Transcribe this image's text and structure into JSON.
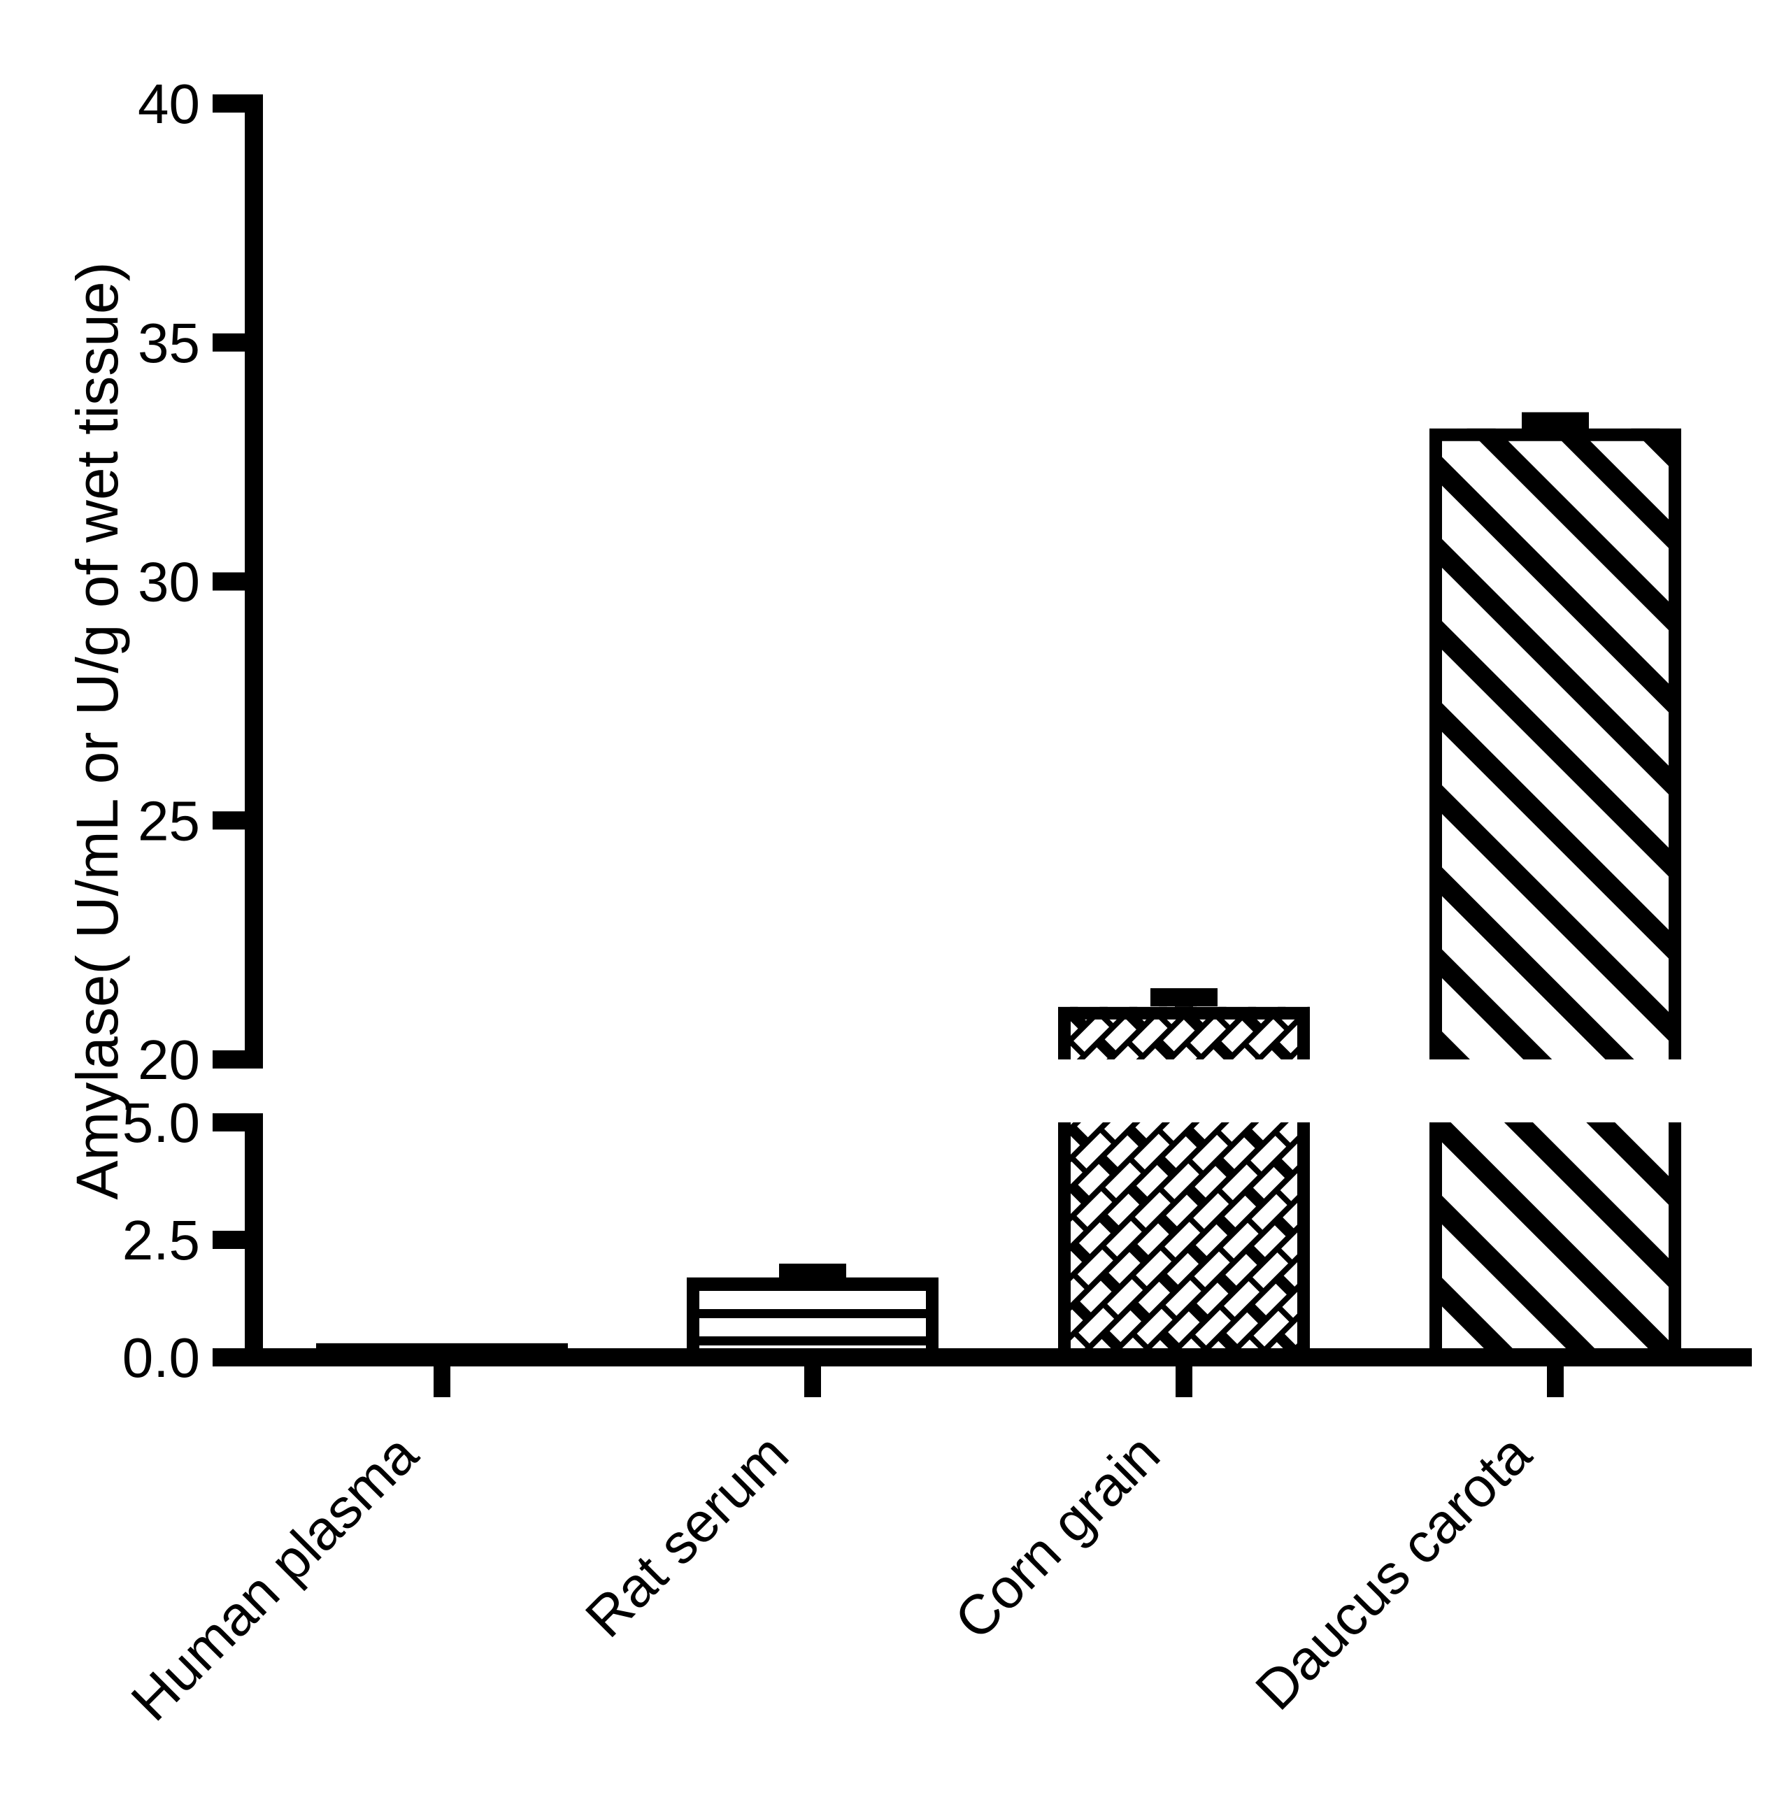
{
  "figure": {
    "background": "#ffffff",
    "ink_color": "#000000",
    "description": "Broken-axis bar chart of amylase activity in four sources"
  },
  "chart_data": {
    "type": "bar",
    "title": "",
    "xlabel": "",
    "ylabel": "Amylase( U/mL or U/g of wet tissue)",
    "categories": [
      "Human plasma",
      "Rat serum",
      "Corn grain",
      "Daucus carota"
    ],
    "values": [
      0.3,
      1.7,
      21.1,
      33.2
    ],
    "errors": [
      0,
      0.1,
      0.2,
      0.15
    ],
    "error_style": "cap-above-bar",
    "bar_patterns": [
      "solid-white",
      "horizontal-lines",
      "diagonal-bricks",
      "diagonal-stripes"
    ],
    "bar_fill_base": "#ffffff",
    "bar_border_color": "#000000",
    "grid": false,
    "legend": null,
    "axis_break": {
      "between_values": [
        5,
        20
      ]
    },
    "lower_axis": {
      "range": [
        0,
        5
      ],
      "tick_labels": [
        "0.0",
        "2.5",
        "5.0"
      ]
    },
    "upper_axis": {
      "range": [
        20,
        40
      ],
      "tick_labels": [
        "20",
        "25",
        "30",
        "35",
        "40"
      ]
    },
    "x_tick_label_rotation_deg": -45
  }
}
